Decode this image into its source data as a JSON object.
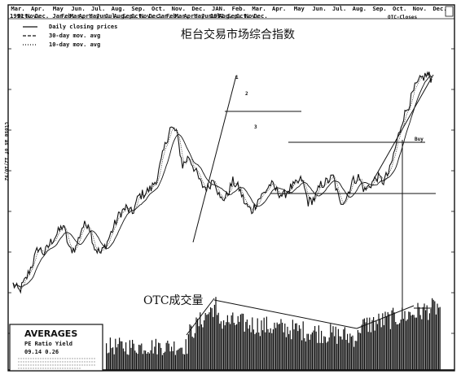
{
  "chart_data": {
    "type": "line",
    "title": "柜台交易市场综合指数",
    "volume_label": "OTC成交量",
    "year_labels": [
      "1991",
      "1992"
    ],
    "months_top": [
      "Mar.",
      "Apr.",
      "May",
      "Jun.",
      "Jul.",
      "Aug.",
      "Sep.",
      "Oct.",
      "Nov.",
      "Dec.",
      "JAN.",
      "Feb.",
      "Mar.",
      "Apr.",
      "May",
      "Jun.",
      "Jul.",
      "Aug.",
      "Sep.",
      "Oct.",
      "Nov.",
      "Dec."
    ],
    "months_bottom": [
      "Oct.",
      "Nov.",
      "Dec.",
      "",
      "Jan.",
      "Feb.",
      "Mar.",
      "Apr.",
      "May",
      "Jun.",
      "Jul.",
      "Aug.",
      "Sep.",
      "Oct.",
      "Nov.",
      "Dec.",
      "Jan.",
      "Feb.",
      "Mar.",
      "Apr.",
      "May",
      "Jun.",
      "Jul.",
      "Aug.",
      "Sep.",
      "Oct.",
      "Nov.",
      "Dec."
    ],
    "corner_label": "OTC-Closes",
    "legend": [
      {
        "style": "solid",
        "label": "Daily closing prices"
      },
      {
        "style": "dashed",
        "label": "30-day mov. avg"
      },
      {
        "style": "dotted",
        "label": "10-day mov. avg"
      }
    ],
    "side_label": "Close as of 12/10/92",
    "wave_labels": [
      "1",
      "2",
      "3"
    ],
    "buy_label": "Buy",
    "averages_box": {
      "title": "AVERAGES",
      "headers": "PE Ratio  Yield",
      "values": "09.14    0.26"
    },
    "y_ticks_left": [
      "",
      "",
      "",
      "",
      "",
      ""
    ],
    "series": [
      {
        "name": "Daily closing prices",
        "x": [
          0,
          3,
          6,
          9,
          12,
          15,
          18,
          21,
          24,
          27,
          30,
          33,
          36,
          39,
          42,
          45,
          48,
          51,
          54,
          57,
          60,
          63,
          66,
          69,
          72,
          75,
          78,
          81,
          84,
          87,
          90,
          93,
          96,
          99,
          102,
          105,
          108,
          111,
          114,
          117,
          120,
          123,
          126,
          129,
          132,
          135,
          138,
          141,
          144,
          147,
          150,
          153,
          156,
          159,
          162,
          165,
          168,
          171,
          174,
          177,
          180,
          183,
          186,
          189,
          192,
          195,
          198,
          200
        ],
        "values": [
          268,
          262,
          272,
          285,
          300,
          295,
          305,
          312,
          320,
          298,
          300,
          318,
          322,
          300,
          295,
          305,
          318,
          330,
          335,
          330,
          345,
          348,
          352,
          362,
          385,
          405,
          402,
          372,
          380,
          368,
          355,
          352,
          362,
          342,
          345,
          358,
          352,
          338,
          332,
          342,
          348,
          356,
          350,
          345,
          352,
          355,
          360,
          340,
          343,
          355,
          358,
          362,
          340,
          343,
          358,
          362,
          350,
          356,
          362,
          358,
          368,
          390,
          412,
          425,
          440,
          448,
          452,
          448
        ]
      }
    ]
  }
}
